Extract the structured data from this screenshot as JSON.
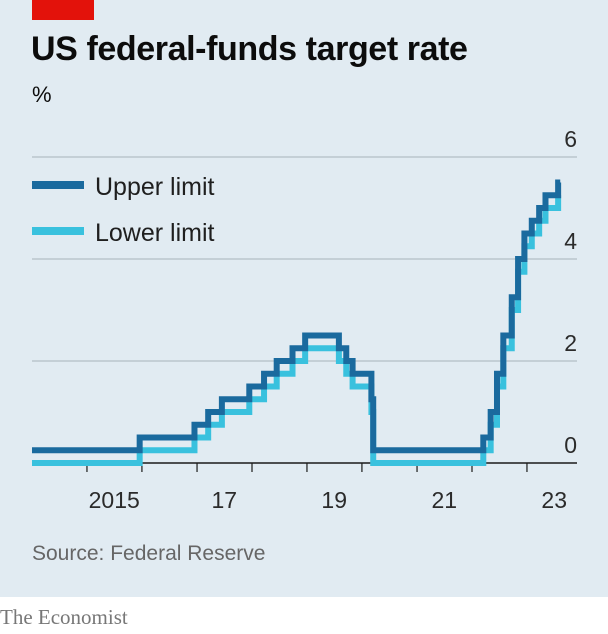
{
  "header": {
    "title": "US federal-funds target rate",
    "unit": "%"
  },
  "source": "Source: Federal Reserve",
  "brand": "The Economist",
  "colors": {
    "upper": "#1a6a9e",
    "lower": "#39c1de",
    "accent": "#e3120b",
    "background": "#e1ebf2"
  },
  "legend": {
    "upper_label": "Upper limit",
    "lower_label": "Lower limit",
    "placement": "top-left"
  },
  "chart_data": {
    "type": "line",
    "title": "US federal-funds target rate",
    "ylabel": "%",
    "ylim": [
      0,
      6
    ],
    "yticks": [
      "0",
      "2",
      "4",
      "6"
    ],
    "xticks": [
      "2015",
      "17",
      "19",
      "21",
      "23"
    ],
    "xlim": [
      "2014-01-01",
      "2023-12-31"
    ],
    "grid": true,
    "series": [
      {
        "name": "Upper limit",
        "x": [
          "2014-01-01",
          "2015-12-17",
          "2016-12-15",
          "2017-03-16",
          "2017-06-15",
          "2017-12-14",
          "2018-03-22",
          "2018-06-14",
          "2018-09-27",
          "2018-12-20",
          "2019-08-01",
          "2019-09-19",
          "2019-10-31",
          "2020-03-04",
          "2020-03-16",
          "2022-03-17",
          "2022-05-05",
          "2022-06-16",
          "2022-07-28",
          "2022-09-22",
          "2022-11-03",
          "2022-12-15",
          "2023-02-02",
          "2023-03-23",
          "2023-05-04",
          "2023-07-27",
          "2023-08-10"
        ],
        "values": [
          0.25,
          0.5,
          0.75,
          1.0,
          1.25,
          1.5,
          1.75,
          2.0,
          2.25,
          2.5,
          2.25,
          2.0,
          1.75,
          1.25,
          0.25,
          0.5,
          1.0,
          1.75,
          2.5,
          3.25,
          4.0,
          4.5,
          4.75,
          5.0,
          5.25,
          5.5,
          5.5
        ]
      },
      {
        "name": "Lower limit",
        "x": [
          "2014-01-01",
          "2015-12-17",
          "2016-12-15",
          "2017-03-16",
          "2017-06-15",
          "2017-12-14",
          "2018-03-22",
          "2018-06-14",
          "2018-09-27",
          "2018-12-20",
          "2019-08-01",
          "2019-09-19",
          "2019-10-31",
          "2020-03-04",
          "2020-03-16",
          "2022-03-17",
          "2022-05-05",
          "2022-06-16",
          "2022-07-28",
          "2022-09-22",
          "2022-11-03",
          "2022-12-15",
          "2023-02-02",
          "2023-03-23",
          "2023-05-04",
          "2023-07-27",
          "2023-08-10"
        ],
        "values": [
          0.0,
          0.25,
          0.5,
          0.75,
          1.0,
          1.25,
          1.5,
          1.75,
          2.0,
          2.25,
          2.0,
          1.75,
          1.5,
          1.0,
          0.0,
          0.25,
          0.75,
          1.5,
          2.25,
          3.0,
          3.75,
          4.25,
          4.5,
          4.75,
          5.0,
          5.25,
          5.25
        ]
      }
    ]
  }
}
